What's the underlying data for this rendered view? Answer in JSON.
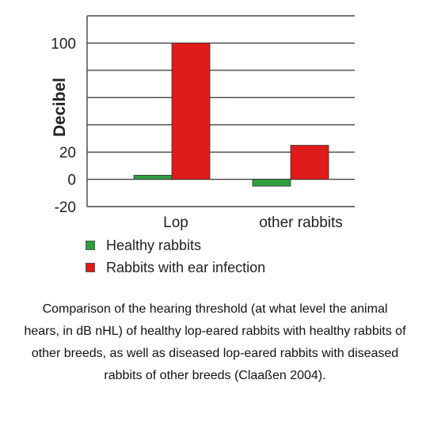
{
  "chart_data": {
    "type": "bar",
    "categories": [
      "Lop",
      "other rabbits"
    ],
    "series": [
      {
        "name": "Healthy rabbits",
        "values": [
          3,
          -5
        ],
        "color": "#2e9e3e"
      },
      {
        "name": "Rabbits with ear infection",
        "values": [
          100,
          25
        ],
        "color": "#e01b1b"
      }
    ],
    "ylabel": "Decibel",
    "ylim": [
      -20,
      120
    ],
    "yticks": [
      -20,
      0,
      20,
      100
    ],
    "ytick_labels": [
      "-20",
      "0",
      "20",
      "100"
    ],
    "grid": true,
    "legend_position": "bottom-left"
  },
  "caption": "Comparison of the hearing threshold (at what level the animal hears, in dB nHL) of healthy lop-eared rabbits with healthy rabbits of other breeds, as well as diseased lop-eared rabbits with diseased rabbits of other breeds (Claaßen 2004)."
}
